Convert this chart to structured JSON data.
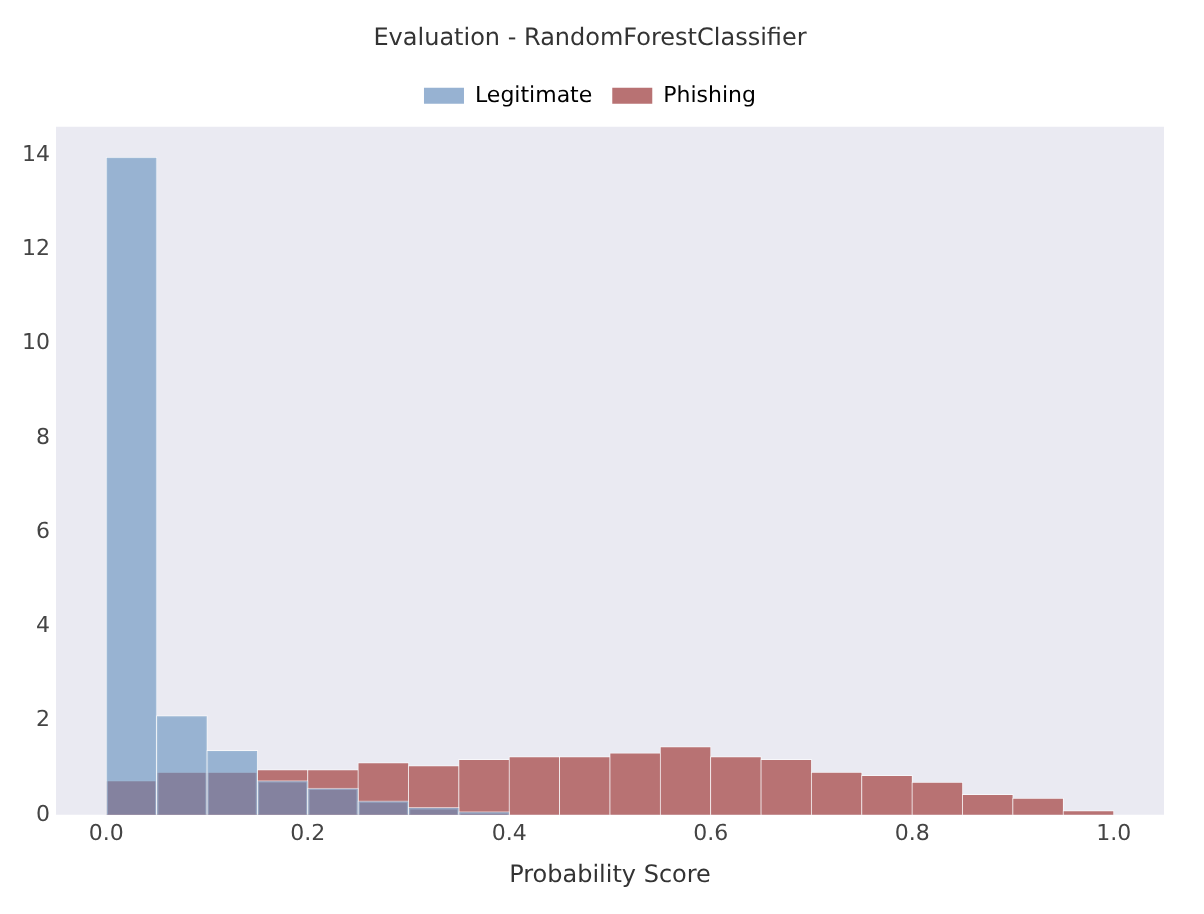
{
  "chart_data": {
    "type": "histogram",
    "title": "Evaluation - RandomForestClassifier",
    "xlabel": "Probability Score",
    "bins": [
      0,
      0.05,
      0.1,
      0.15,
      0.2,
      0.25,
      0.3,
      0.35,
      0.4,
      0.45,
      0.5,
      0.55,
      0.6,
      0.65,
      0.7,
      0.75,
      0.8,
      0.85,
      0.9,
      0.95,
      1.0
    ],
    "series": [
      {
        "name": "Legitimate",
        "color": "#97b2d2",
        "values": [
          13.95,
          2.1,
          1.36,
          0.72,
          0.56,
          0.29,
          0.15,
          0.06,
          0,
          0,
          0,
          0,
          0,
          0,
          0,
          0,
          0,
          0,
          0,
          0
        ]
      },
      {
        "name": "Phishing",
        "color": "#b87273",
        "values": [
          0.72,
          0.9,
          0.9,
          0.95,
          0.95,
          1.1,
          1.04,
          1.17,
          1.23,
          1.23,
          1.31,
          1.44,
          1.23,
          1.17,
          0.9,
          0.83,
          0.69,
          0.43,
          0.35,
          0.08
        ]
      }
    ],
    "xlim": [
      -0.05,
      1.05
    ],
    "xticks": [
      {
        "value": 0,
        "label": "0.0"
      },
      0.2,
      0.4,
      0.6,
      0.8,
      {
        "value": 1,
        "label": "1.0"
      }
    ],
    "ylim": [
      0,
      14.6
    ],
    "yticks": [
      0,
      2,
      4,
      6,
      8,
      10,
      12,
      14
    ],
    "grid": false,
    "legend": "top"
  }
}
